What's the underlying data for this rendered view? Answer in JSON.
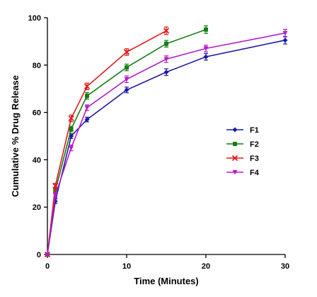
{
  "chart_data": {
    "type": "line",
    "xlabel": "Time (Minutes)",
    "ylabel": "Cumulative % Drug Release",
    "xlim": [
      0,
      30
    ],
    "ylim": [
      0,
      100
    ],
    "xticks": [
      0,
      10,
      20,
      30
    ],
    "yticks": [
      0,
      20,
      40,
      60,
      80,
      100
    ],
    "grid": false,
    "legend_position": "right",
    "series": [
      {
        "name": "F1",
        "color": "#1a1aa6",
        "marker": "diamond",
        "points": [
          [
            0,
            0
          ],
          [
            1,
            22.5
          ],
          [
            3,
            50
          ],
          [
            5,
            57
          ],
          [
            10,
            69.5
          ],
          [
            15,
            77
          ],
          [
            20,
            83.5
          ],
          [
            30,
            90.5
          ]
        ],
        "errors": [
          0,
          1,
          1,
          1,
          1.2,
          1.4,
          1.4,
          1.6
        ]
      },
      {
        "name": "F2",
        "color": "#137f13",
        "marker": "square",
        "points": [
          [
            0,
            0
          ],
          [
            1,
            27
          ],
          [
            3,
            53
          ],
          [
            5,
            67
          ],
          [
            10,
            79
          ],
          [
            15,
            89
          ],
          [
            20,
            95
          ]
        ],
        "errors": [
          0,
          1,
          1.2,
          1.4,
          1.4,
          1.4,
          1.6
        ]
      },
      {
        "name": "F3",
        "color": "#e01b1b",
        "marker": "cross",
        "points": [
          [
            0,
            0
          ],
          [
            1,
            29
          ],
          [
            3,
            57.5
          ],
          [
            5,
            71
          ],
          [
            10,
            85.5
          ],
          [
            15,
            94.5
          ]
        ],
        "errors": [
          0,
          1,
          1.4,
          1.4,
          1.4,
          1.6
        ]
      },
      {
        "name": "F4",
        "color": "#b51bc9",
        "marker": "triangle-down",
        "points": [
          [
            0,
            0
          ],
          [
            1,
            25
          ],
          [
            3,
            45
          ],
          [
            5,
            62
          ],
          [
            10,
            74
          ],
          [
            15,
            82.5
          ],
          [
            20,
            87
          ],
          [
            30,
            93.5
          ]
        ],
        "errors": [
          0,
          1,
          1.2,
          1.2,
          1.4,
          1.4,
          1.4,
          1.6
        ]
      }
    ]
  }
}
